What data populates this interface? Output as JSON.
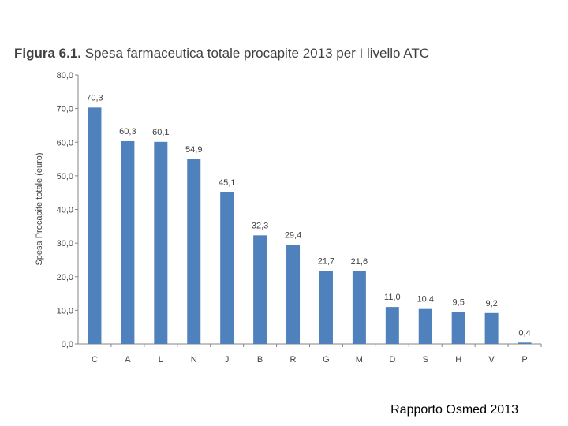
{
  "title_prefix": "Figura 6.1.",
  "title_text": "Spesa farmaceutica totale procapite 2013 per I livello ATC",
  "footer": "Rapporto Osmed 2013",
  "chart_data": {
    "type": "bar",
    "title": "Figura 6.1. Spesa farmaceutica totale procapite 2013 per I livello ATC",
    "xlabel": "",
    "ylabel": "Spesa Procapite totale (euro)",
    "ylim": [
      0,
      80
    ],
    "yticks": [
      "0,0",
      "10,0",
      "20,0",
      "30,0",
      "40,0",
      "50,0",
      "60,0",
      "70,0",
      "80,0"
    ],
    "categories": [
      "C",
      "A",
      "L",
      "N",
      "J",
      "B",
      "R",
      "G",
      "M",
      "D",
      "S",
      "H",
      "V",
      "P"
    ],
    "values": [
      70.3,
      60.3,
      60.1,
      54.9,
      45.1,
      32.3,
      29.4,
      21.7,
      21.6,
      11.0,
      10.4,
      9.5,
      9.2,
      0.4
    ],
    "value_labels": [
      "70,3",
      "60,3",
      "60,1",
      "54,9",
      "45,1",
      "32,3",
      "29,4",
      "21,7",
      "21,6",
      "11,0",
      "10,4",
      "9,5",
      "9,2",
      "0,4"
    ],
    "bar_color": "#4F81BD",
    "grid": false,
    "legend": "none"
  }
}
